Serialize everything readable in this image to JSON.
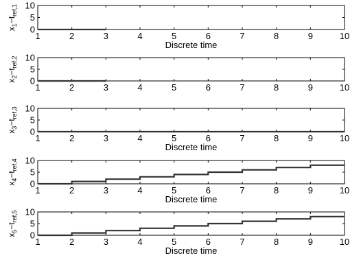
{
  "chart_data": [
    {
      "type": "line",
      "ylabel": {
        "main": "x",
        "sub1": "1",
        "mid": "−t",
        "sub2": "ref,1"
      },
      "xlabel": "Discrete time",
      "xlim": [
        1,
        10
      ],
      "ylim": [
        0,
        10
      ],
      "xticks": [
        1,
        2,
        3,
        4,
        5,
        6,
        7,
        8,
        9,
        10
      ],
      "yticks": [
        0,
        5,
        10
      ],
      "step": true,
      "series": [
        {
          "x": [
            1,
            3
          ],
          "y": [
            0,
            0
          ]
        }
      ]
    },
    {
      "type": "line",
      "ylabel": {
        "main": "x",
        "sub1": "2",
        "mid": "−t",
        "sub2": "ref,2"
      },
      "xlabel": "",
      "xlim": [
        1,
        10
      ],
      "ylim": [
        0,
        10
      ],
      "xticks": [
        1,
        2,
        3,
        4,
        5,
        6,
        7,
        8,
        9,
        10
      ],
      "yticks": [
        0,
        5,
        10
      ],
      "step": true,
      "series": [
        {
          "x": [
            1,
            3
          ],
          "y": [
            0,
            0
          ]
        }
      ]
    },
    {
      "type": "line",
      "ylabel": {
        "main": "x",
        "sub1": "3",
        "mid": "−t",
        "sub2": "ref,3"
      },
      "xlabel": "Discrete time",
      "xlim": [
        1,
        10
      ],
      "ylim": [
        0,
        10
      ],
      "xticks": [
        1,
        2,
        3,
        4,
        5,
        6,
        7,
        8,
        9,
        10
      ],
      "yticks": [
        0,
        5,
        10
      ],
      "step": true,
      "series": [
        {
          "x": [
            1,
            10
          ],
          "y": [
            0,
            0
          ]
        }
      ]
    },
    {
      "type": "line",
      "ylabel": {
        "main": "x",
        "sub1": "4",
        "mid": "−t",
        "sub2": "ref,4"
      },
      "xlabel": "Discrete time",
      "xlim": [
        1,
        10
      ],
      "ylim": [
        0,
        10
      ],
      "xticks": [
        1,
        2,
        3,
        4,
        5,
        6,
        7,
        8,
        9,
        10
      ],
      "yticks": [
        0,
        5,
        10
      ],
      "step": true,
      "series": [
        {
          "x": [
            1,
            2,
            3,
            4,
            5,
            6,
            7,
            8,
            9,
            10
          ],
          "y": [
            0,
            1,
            2,
            3,
            4,
            5,
            6,
            7,
            8,
            8
          ]
        }
      ]
    },
    {
      "type": "line",
      "ylabel": {
        "main": "x",
        "sub1": "5",
        "mid": "−t",
        "sub2": "ref,5"
      },
      "xlabel": "Discrete time",
      "xlim": [
        1,
        10
      ],
      "ylim": [
        0,
        10
      ],
      "xticks": [
        1,
        2,
        3,
        4,
        5,
        6,
        7,
        8,
        9,
        10
      ],
      "yticks": [
        0,
        5,
        10
      ],
      "step": true,
      "series": [
        {
          "x": [
            1,
            2,
            3,
            4,
            5,
            6,
            7,
            8,
            9,
            10
          ],
          "y": [
            0,
            1,
            2,
            3,
            4,
            5,
            6,
            7,
            8,
            8
          ]
        }
      ]
    }
  ],
  "style": {
    "line_color": "#333333",
    "axis_color": "#000000",
    "background": "#ffffff"
  }
}
